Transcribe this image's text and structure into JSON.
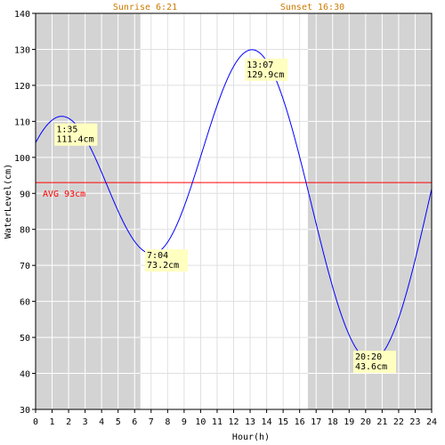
{
  "chart_data": {
    "type": "line",
    "xlabel": "Hour(h)",
    "ylabel": "WaterLevel(cm)",
    "xlim": [
      0,
      24
    ],
    "ylim": [
      30,
      140
    ],
    "x_ticks": [
      0,
      1,
      2,
      3,
      4,
      5,
      6,
      7,
      8,
      9,
      10,
      11,
      12,
      13,
      14,
      15,
      16,
      17,
      18,
      19,
      20,
      21,
      22,
      23,
      24
    ],
    "y_ticks": [
      30,
      40,
      50,
      60,
      70,
      80,
      90,
      100,
      110,
      120,
      130,
      140
    ],
    "grid": true,
    "night_shading": [
      [
        0,
        6.35
      ],
      [
        16.5,
        24
      ]
    ],
    "sunrise_label": "Sunrise 6:21",
    "sunset_label": "Sunset 16:30",
    "average": {
      "value": 93,
      "label": "AVG 93cm",
      "color": "#ff0000"
    },
    "series": [
      {
        "color": "#0000ff",
        "extremes": [
          {
            "x": 1.583,
            "y": 111.4,
            "time": "1:35",
            "level": "111.4cm"
          },
          {
            "x": 7.067,
            "y": 73.2,
            "time": "7:04",
            "level": "73.2cm"
          },
          {
            "x": 13.117,
            "y": 129.9,
            "time": "13:07",
            "level": "129.9cm"
          },
          {
            "x": 20.333,
            "y": 43.6,
            "time": "20:20",
            "level": "43.6cm"
          }
        ],
        "start": {
          "x": 0,
          "y": 102.9
        },
        "end": {
          "x": 24,
          "y": 90.6
        }
      }
    ],
    "colors": {
      "night_shade": "#d3d3d3",
      "grid_day": "#e0e0e0",
      "grid_night": "#ffffff",
      "annotation_bg": "#ffffc0",
      "sun_text": "#cc7a00"
    }
  }
}
